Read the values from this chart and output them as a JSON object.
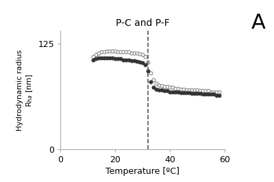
{
  "title": "P-C and P-F",
  "label_A": "A",
  "xlabel": "Temperature [ºC]",
  "ylabel_line1": "Hydrodynamic radius",
  "ylabel_line2": "R$_{ha}$ [nm]",
  "xlim": [
    0,
    60
  ],
  "ylim": [
    0,
    140
  ],
  "yticks": [
    0,
    125
  ],
  "xticks": [
    0,
    20,
    40,
    60
  ],
  "vline_x": 32,
  "open_circles": {
    "x": [
      12,
      13,
      14,
      15,
      16,
      17,
      18,
      19,
      20,
      21,
      22,
      23,
      24,
      25,
      26,
      27,
      28,
      29,
      30,
      31,
      32,
      33,
      34,
      35,
      36,
      37,
      38,
      39,
      40,
      41,
      42,
      43,
      44,
      45,
      46,
      47,
      48,
      49,
      50,
      51,
      52,
      53,
      54,
      55,
      56,
      57,
      58
    ],
    "y": [
      110,
      112,
      114,
      115,
      115,
      116,
      116,
      116,
      116,
      115,
      115,
      115,
      115,
      115,
      114,
      114,
      114,
      113,
      112,
      110,
      103,
      90,
      82,
      78,
      76,
      75,
      74,
      74,
      73,
      73,
      72,
      72,
      71,
      71,
      70,
      70,
      70,
      70,
      70,
      69,
      69,
      69,
      69,
      68,
      68,
      68,
      68
    ]
  },
  "filled_circles": {
    "x": [
      12,
      13,
      14,
      15,
      16,
      17,
      18,
      19,
      20,
      21,
      22,
      23,
      24,
      25,
      26,
      27,
      28,
      29,
      30,
      31,
      32,
      33,
      34,
      35,
      36,
      37,
      38,
      39,
      40,
      41,
      42,
      43,
      44,
      45,
      46,
      47,
      48,
      49,
      50,
      51,
      52,
      53,
      54,
      55,
      56,
      57,
      58
    ],
    "y": [
      106,
      107,
      108,
      108,
      108,
      108,
      108,
      108,
      107,
      107,
      107,
      106,
      106,
      106,
      105,
      105,
      104,
      103,
      102,
      100,
      93,
      80,
      73,
      71,
      70,
      70,
      69,
      69,
      68,
      68,
      68,
      68,
      67,
      67,
      67,
      67,
      66,
      66,
      66,
      66,
      65,
      65,
      65,
      65,
      65,
      64,
      64
    ]
  },
  "open_color": "#888888",
  "filled_color": "#333333",
  "spine_color": "#aaaaaa",
  "background_color": "#ffffff"
}
